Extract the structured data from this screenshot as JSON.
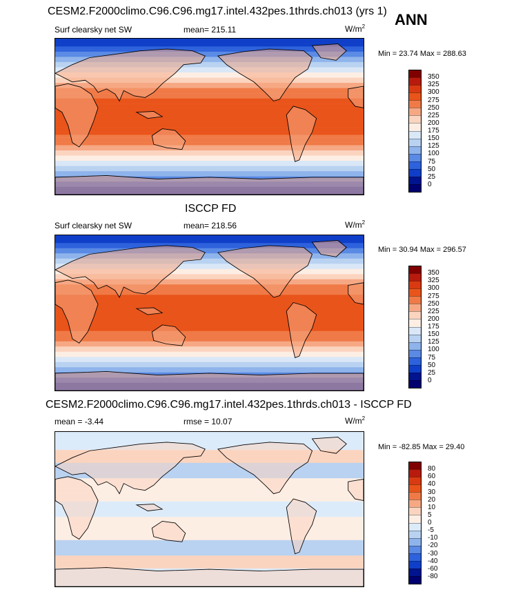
{
  "season": "ANN",
  "panels": [
    {
      "id": "model",
      "title": "CESM2.F2000climo.C96.C96.mg17.intel.432pes.1thrds.ch013 (yrs 1)",
      "left_label": "Surf clearsky net SW",
      "center_label": "mean= 215.11",
      "units": "W/m",
      "units_sup": "2",
      "minmax": "Min =  23.74 Max = 288.63",
      "colorbar_levels": [
        "350",
        "325",
        "300",
        "275",
        "250",
        "225",
        "200",
        "175",
        "150",
        "125",
        "100",
        "75",
        "50",
        "25",
        "0"
      ]
    },
    {
      "id": "obs",
      "title": "ISCCP FD",
      "left_label": "Surf clearsky net SW",
      "center_label": "mean= 218.56",
      "units": "W/m",
      "units_sup": "2",
      "minmax": "Min =  30.94 Max = 296.57",
      "colorbar_levels": [
        "350",
        "325",
        "300",
        "275",
        "250",
        "225",
        "200",
        "175",
        "150",
        "125",
        "100",
        "75",
        "50",
        "25",
        "0"
      ]
    },
    {
      "id": "diff",
      "title": "CESM2.F2000climo.C96.C96.mg17.intel.432pes.1thrds.ch013 - ISCCP FD",
      "left_label": "mean =  -3.44",
      "center_label": "rmse =  10.07",
      "units": "W/m",
      "units_sup": "2",
      "minmax": "Min = -82.85 Max =  29.40",
      "colorbar_levels": [
        "80",
        "60",
        "40",
        "30",
        "20",
        "10",
        "5",
        "0",
        "-5",
        "-10",
        "-20",
        "-30",
        "-40",
        "-60",
        "-80"
      ]
    }
  ],
  "colors": {
    "field_scale": [
      "#800000",
      "#b81a0e",
      "#d93a12",
      "#e9541a",
      "#f07a47",
      "#f6a884",
      "#fbd4bf",
      "#fdeee4",
      "#d9e7f7",
      "#b9d2f1",
      "#8fb4ec",
      "#5a8ae4",
      "#2e62dc",
      "#0f3fc8",
      "#00148f",
      "#000070"
    ],
    "diff_scale": [
      "#800000",
      "#b81a0e",
      "#d93a12",
      "#e9541a",
      "#f07a47",
      "#f6a884",
      "#fbd4bf",
      "#fdeee4",
      "#dcebfa",
      "#b9d2f1",
      "#8fb4ec",
      "#5a8ae4",
      "#2e62dc",
      "#0f3fc8",
      "#00148f",
      "#000070"
    ],
    "coast": "#000000"
  }
}
